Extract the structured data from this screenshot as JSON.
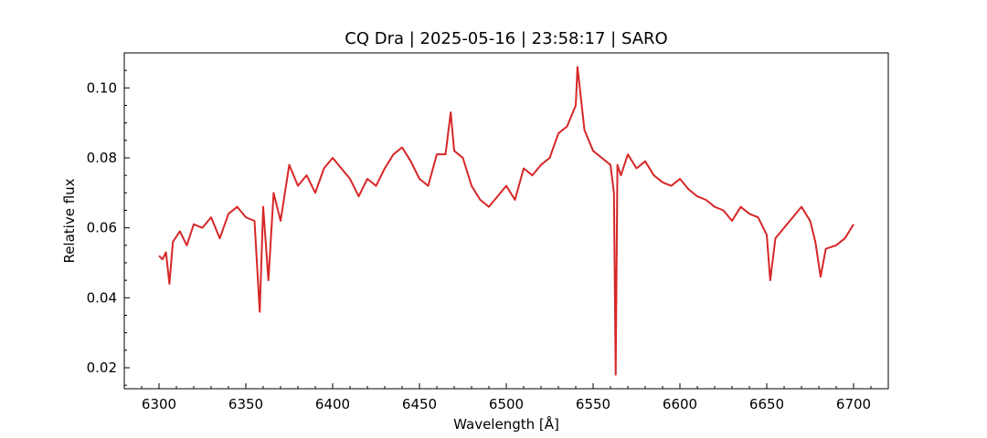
{
  "chart_data": {
    "type": "line",
    "title": "CQ Dra | 2025-05-16 | 23:58:17 | SARO",
    "xlabel": "Wavelength [Å]",
    "ylabel": "Relative flux",
    "xlim": [
      6280,
      6720
    ],
    "ylim": [
      0.014,
      0.11
    ],
    "x_ticks": [
      6300,
      6350,
      6400,
      6450,
      6500,
      6550,
      6600,
      6650,
      6700
    ],
    "y_ticks": [
      0.02,
      0.04,
      0.06,
      0.08,
      0.1
    ],
    "x_tick_labels": [
      "6300",
      "6350",
      "6400",
      "6450",
      "6500",
      "6550",
      "6600",
      "6650",
      "6700"
    ],
    "y_tick_labels": [
      "0.02",
      "0.04",
      "0.06",
      "0.08",
      "0.10"
    ],
    "grid": false,
    "legend": false,
    "series": [
      {
        "color": "#d62728",
        "x": [
          6300,
          6302,
          6304,
          6306,
          6308,
          6312,
          6316,
          6320,
          6325,
          6330,
          6335,
          6340,
          6345,
          6350,
          6355,
          6358,
          6360,
          6363,
          6366,
          6370,
          6375,
          6380,
          6385,
          6390,
          6395,
          6400,
          6405,
          6410,
          6415,
          6420,
          6425,
          6430,
          6435,
          6440,
          6445,
          6450,
          6455,
          6460,
          6465,
          6468,
          6470,
          6475,
          6480,
          6485,
          6490,
          6495,
          6500,
          6505,
          6510,
          6515,
          6520,
          6525,
          6530,
          6535,
          6540,
          6541,
          6545,
          6550,
          6555,
          6560,
          6562,
          6563,
          6564,
          6566,
          6570,
          6575,
          6580,
          6585,
          6590,
          6595,
          6600,
          6605,
          6610,
          6615,
          6620,
          6625,
          6630,
          6635,
          6640,
          6645,
          6650,
          6652,
          6655,
          6660,
          6665,
          6670,
          6675,
          6678,
          6681,
          6684,
          6690,
          6695,
          6700
        ],
        "y": [
          0.052,
          0.051,
          0.053,
          0.044,
          0.056,
          0.059,
          0.055,
          0.061,
          0.06,
          0.063,
          0.057,
          0.064,
          0.066,
          0.063,
          0.062,
          0.036,
          0.066,
          0.045,
          0.07,
          0.062,
          0.078,
          0.072,
          0.075,
          0.07,
          0.077,
          0.08,
          0.077,
          0.074,
          0.069,
          0.074,
          0.072,
          0.077,
          0.081,
          0.083,
          0.079,
          0.074,
          0.072,
          0.081,
          0.081,
          0.093,
          0.082,
          0.08,
          0.072,
          0.068,
          0.066,
          0.069,
          0.072,
          0.068,
          0.077,
          0.075,
          0.078,
          0.08,
          0.087,
          0.089,
          0.095,
          0.106,
          0.088,
          0.082,
          0.08,
          0.078,
          0.07,
          0.018,
          0.078,
          0.075,
          0.081,
          0.077,
          0.079,
          0.075,
          0.073,
          0.072,
          0.074,
          0.071,
          0.069,
          0.068,
          0.066,
          0.065,
          0.062,
          0.066,
          0.064,
          0.063,
          0.058,
          0.045,
          0.057,
          0.06,
          0.063,
          0.066,
          0.062,
          0.056,
          0.046,
          0.054,
          0.055,
          0.057,
          0.061
        ]
      }
    ]
  }
}
